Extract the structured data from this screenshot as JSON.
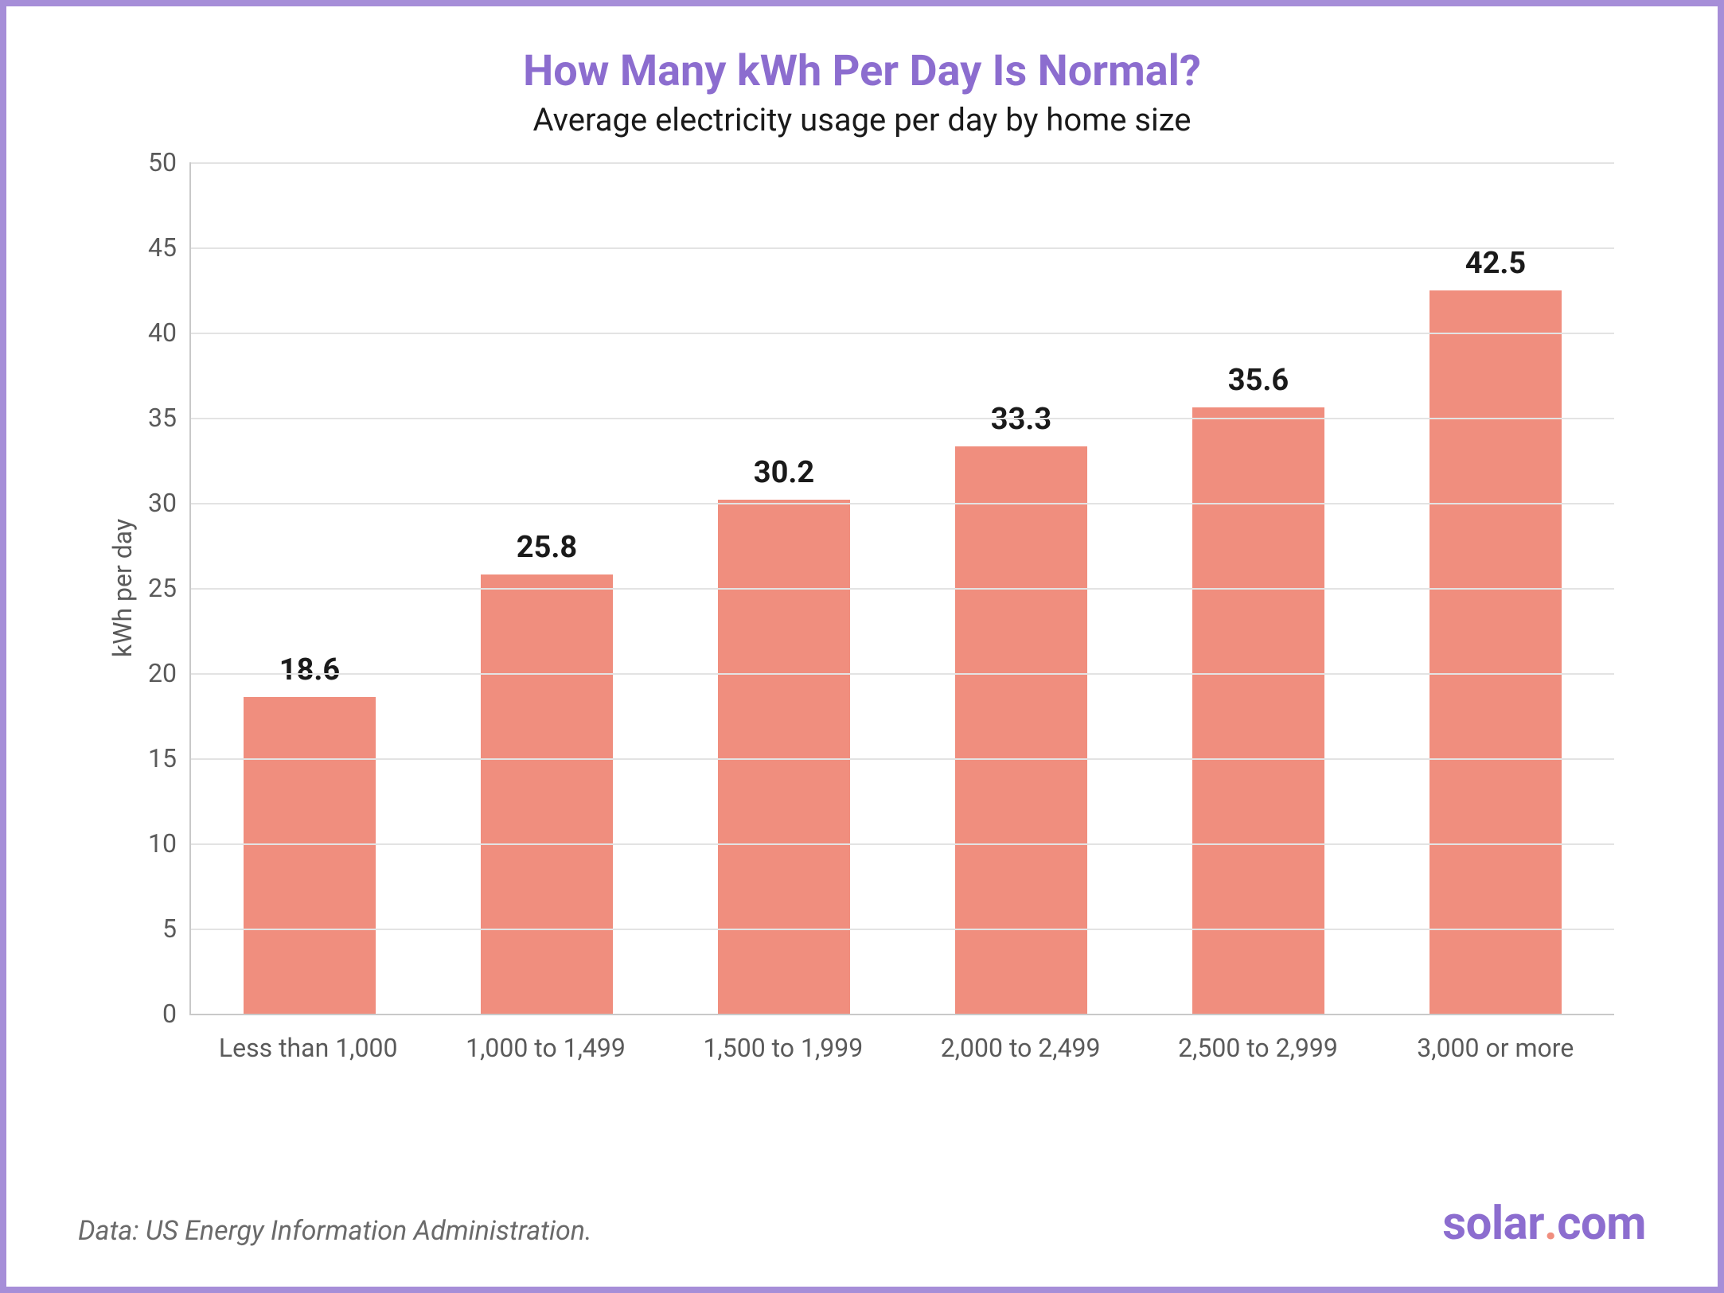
{
  "frame": {
    "border_color": "#a68ed8",
    "background_color": "#ffffff"
  },
  "header": {
    "title": "How Many kWh Per Day Is Normal?",
    "title_color": "#8c6dcf",
    "title_fontsize": 54,
    "title_fontweight": 700,
    "subtitle": "Average electricity usage per day by home size",
    "subtitle_color": "#1a1a1a",
    "subtitle_fontsize": 40
  },
  "chart": {
    "type": "bar",
    "categories": [
      "Less than 1,000",
      "1,000 to 1,499",
      "1,500 to 1,999",
      "2,000 to 2,499",
      "2,500 to 2,999",
      "3,000 or more"
    ],
    "values": [
      18.6,
      25.8,
      30.2,
      33.3,
      35.6,
      42.5
    ],
    "value_labels": [
      "18.6",
      "25.8",
      "30.2",
      "33.3",
      "35.6",
      "42.5"
    ],
    "bar_color": "#f08e7e",
    "bar_width_pct": 56,
    "ylabel": "kWh per day",
    "ylim": [
      0,
      50
    ],
    "ytick_step": 5,
    "yticks": [
      0,
      5,
      10,
      15,
      20,
      25,
      30,
      35,
      40,
      45,
      50
    ],
    "grid_color": "#e3e3e3",
    "axis_color": "#c9c9c9",
    "tick_label_fontsize": 32,
    "tick_label_color": "#5a5a5a",
    "value_label_fontsize": 38,
    "value_label_color": "#1a1a1a",
    "value_label_fontweight": 700,
    "ylabel_fontsize": 32
  },
  "footer": {
    "source_prefix": "Data: ",
    "source_name": "US Energy Information Administration",
    "source_suffix": ".",
    "source_fontsize": 34,
    "source_color": "#6a6a6a",
    "logo": {
      "text_solar": "solar",
      "text_dot": ".",
      "text_com": "com",
      "color_main": "#8c6dcf",
      "color_dot": "#f08e7e",
      "fontsize": 58
    }
  }
}
